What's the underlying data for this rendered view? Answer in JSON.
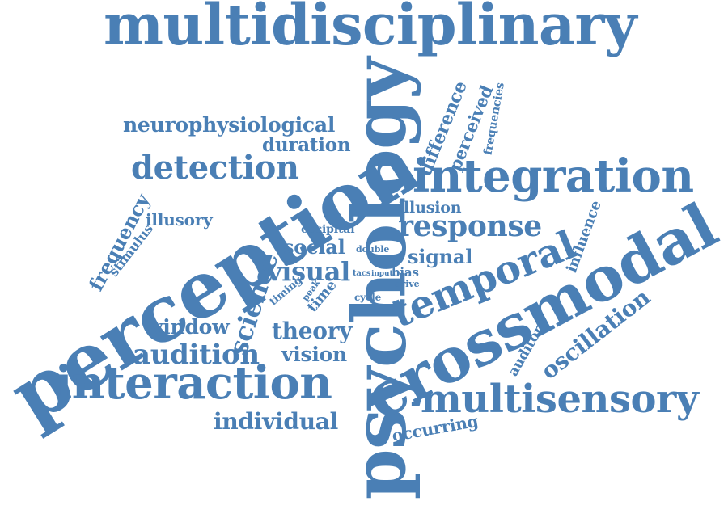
{
  "color": "#4a7fb5",
  "words": {
    "multidisciplinary": "multidisciplinary",
    "psychology": "psychology",
    "perception": "perception",
    "crossmodal": "crossmodal",
    "integration": "integration",
    "interaction": "interaction",
    "multisensory": "multisensory",
    "temporal": "temporal",
    "detection": "detection",
    "neurophysiological": "neurophysiological",
    "duration": "duration",
    "response": "response",
    "audition": "audition",
    "window": "window",
    "theory": "theory",
    "vision": "vision",
    "individual": "individual",
    "visual": "visual",
    "social": "social",
    "science": "science",
    "frequency": "frequency",
    "illusory": "illusory",
    "stimulus": "stimulus",
    "difference": "difference",
    "perceived": "perceived",
    "frequencies": "frequencies",
    "illusion": "illusion",
    "signal": "signal",
    "influence": "influence",
    "oscillation": "oscillation",
    "auditory": "auditory",
    "occurring": "occurring",
    "occipital": "occipital",
    "double": "double",
    "tacs": "tacs",
    "input": "input",
    "bias": "bias",
    "drive": "drive",
    "cycle": "cycle",
    "time": "time",
    "peak": "peak",
    "timing": "timing"
  }
}
